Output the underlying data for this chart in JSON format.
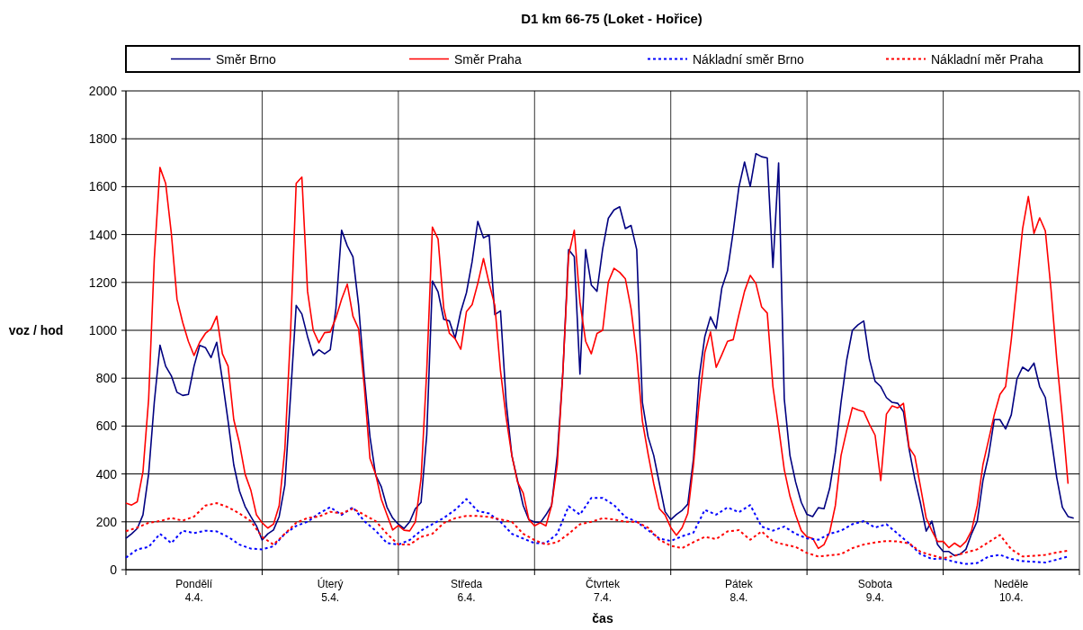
{
  "chart_data": {
    "type": "line",
    "title": "D1 km 66-75 (Loket - Hořice)",
    "xlabel": "čas",
    "ylabel": "voz / hod",
    "categories": [
      null,
      null,
      null,
      null,
      null,
      null,
      null,
      null,
      null,
      null,
      null,
      null,
      "Pondělí\n4.4.",
      null,
      null,
      null,
      null,
      null,
      null,
      null,
      null,
      null,
      null,
      null,
      null,
      null,
      null,
      null,
      null,
      null,
      null,
      null,
      null,
      null,
      null,
      null,
      "Úterý\n5.4.",
      null,
      null,
      null,
      null,
      null,
      null,
      null,
      null,
      null,
      null,
      null,
      null,
      null,
      null,
      null,
      null,
      null,
      null,
      null,
      null,
      null,
      null,
      null,
      "Středa\n6.4.",
      null,
      null,
      null,
      null,
      null,
      null,
      null,
      null,
      null,
      null,
      null,
      null,
      null,
      null,
      null,
      null,
      null,
      null,
      null,
      null,
      null,
      null,
      null,
      "Čtvrtek\n7.4.",
      null,
      null,
      null,
      null,
      null,
      null,
      null,
      null,
      null,
      null,
      null,
      null,
      null,
      null,
      null,
      null,
      null,
      null,
      null,
      null,
      null,
      null,
      null,
      "Pátek\n8.4.",
      null,
      null,
      null,
      null,
      null,
      null,
      null,
      null,
      null,
      null,
      null,
      null,
      null,
      null,
      null,
      null,
      null,
      null,
      null,
      null,
      null,
      null,
      null,
      "Sobota\n9.4.",
      null,
      null,
      null,
      null,
      null,
      null,
      null,
      null,
      null,
      null,
      null,
      null,
      null,
      null,
      null,
      null,
      null,
      null,
      null,
      null,
      null,
      null,
      null,
      "Neděle\n10.4.",
      null,
      null,
      null,
      null,
      null,
      null,
      null,
      null,
      null,
      null,
      null
    ],
    "ylim": [
      0,
      2000
    ],
    "yticks": [
      0,
      200,
      400,
      600,
      800,
      1000,
      1200,
      1400,
      1600,
      1800,
      2000
    ],
    "grid": true,
    "legend": "top",
    "series": [
      {
        "name": "Směr Brno",
        "color": "#000080",
        "line_style": "solid",
        "values": [
          131,
          150,
          172,
          229,
          400,
          700,
          938,
          850,
          810,
          741,
          728,
          732,
          850,
          937,
          928,
          886,
          950,
          791,
          621,
          438,
          329,
          264,
          222,
          183,
          124,
          150,
          166,
          222,
          353,
          725,
          1104,
          1068,
          974,
          895,
          919,
          902,
          919,
          1091,
          1418,
          1353,
          1307,
          1104,
          804,
          555,
          395,
          346,
          261,
          216,
          190,
          172,
          200,
          255,
          281,
          562,
          1206,
          1160,
          1046,
          1039,
          967,
          1078,
          1157,
          1287,
          1455,
          1386,
          1398,
          1065,
          1081,
          699,
          477,
          372,
          268,
          209,
          199,
          196,
          229,
          268,
          477,
          830,
          1337,
          1307,
          817,
          1337,
          1189,
          1163,
          1340,
          1468,
          1503,
          1516,
          1425,
          1438,
          1337,
          699,
          555,
          477,
          359,
          242,
          209,
          231,
          248,
          274,
          464,
          804,
          974,
          1056,
          1007,
          1177,
          1249,
          1412,
          1597,
          1703,
          1601,
          1738,
          1725,
          1720,
          1262,
          1699,
          713,
          477,
          366,
          281,
          231,
          222,
          259,
          255,
          340,
          490,
          699,
          876,
          1000,
          1023,
          1039,
          880,
          787,
          765,
          719,
          699,
          695,
          660,
          503,
          379,
          278,
          161,
          203,
          105,
          76,
          76,
          59,
          65,
          85,
          150,
          203,
          372,
          477,
          627,
          627,
          588,
          647,
          797,
          846,
          830,
          863,
          765,
          719,
          555,
          386,
          261,
          222,
          215
        ]
      },
      {
        "name": "Směr Praha",
        "color": "#ff0000",
        "line_style": "solid",
        "values": [
          278,
          270,
          284,
          409,
          712,
          1300,
          1680,
          1614,
          1405,
          1130,
          1033,
          954,
          895,
          950,
          987,
          1006,
          1059,
          902,
          850,
          627,
          529,
          399,
          333,
          229,
          196,
          174,
          190,
          268,
          503,
          987,
          1614,
          1640,
          1163,
          1000,
          948,
          990,
          993,
          1052,
          1130,
          1193,
          1059,
          1006,
          765,
          464,
          399,
          294,
          229,
          166,
          185,
          165,
          162,
          200,
          380,
          830,
          1431,
          1381,
          1091,
          987,
          965,
          921,
          1078,
          1107,
          1196,
          1300,
          1196,
          1104,
          830,
          634,
          477,
          366,
          320,
          209,
          183,
          196,
          183,
          268,
          438,
          830,
          1313,
          1418,
          1117,
          954,
          902,
          987,
          1000,
          1202,
          1259,
          1242,
          1215,
          1091,
          895,
          621,
          484,
          359,
          255,
          229,
          176,
          144,
          176,
          235,
          438,
          699,
          908,
          993,
          845,
          898,
          954,
          961,
          1065,
          1163,
          1229,
          1196,
          1098,
          1072,
          765,
          595,
          418,
          307,
          229,
          163,
          137,
          131,
          89,
          105,
          157,
          268,
          477,
          582,
          677,
          667,
          660,
          608,
          562,
          372,
          650,
          684,
          676,
          695,
          510,
          474,
          346,
          216,
          163,
          118,
          118,
          92,
          111,
          95,
          118,
          163,
          268,
          438,
          542,
          647,
          732,
          765,
          961,
          1196,
          1425,
          1559,
          1405,
          1470,
          1415,
          1170,
          882,
          634,
          359,
          null
        ]
      },
      {
        "name": "Nákladní směr Brno",
        "color": "#0000ff",
        "line_style": "dotted",
        "values": [
          50,
          null,
          85,
          null,
          95,
          null,
          150,
          null,
          111,
          null,
          163,
          null,
          153,
          null,
          163,
          null,
          160,
          null,
          137,
          null,
          105,
          null,
          88,
          null,
          85,
          null,
          98,
          null,
          150,
          null,
          183,
          null,
          200,
          null,
          235,
          null,
          261,
          null,
          229,
          null,
          261,
          null,
          203,
          null,
          163,
          null,
          111,
          null,
          105,
          null,
          124,
          null,
          163,
          null,
          190,
          null,
          216,
          null,
          250,
          null,
          295,
          null,
          245,
          null,
          235,
          null,
          200,
          null,
          150,
          null,
          130,
          null,
          111,
          null,
          111,
          null,
          150,
          null,
          265,
          null,
          230,
          null,
          300,
          null,
          300,
          null,
          270,
          null,
          220,
          null,
          200,
          null,
          165,
          null,
          130,
          null,
          120,
          null,
          140,
          null,
          155,
          null,
          250,
          null,
          230,
          null,
          260,
          null,
          240,
          null,
          270,
          null,
          180,
          null,
          163,
          null,
          180,
          null,
          150,
          null,
          131,
          null,
          125,
          null,
          150,
          null,
          163,
          null,
          190,
          null,
          203,
          null,
          176,
          null,
          190,
          null,
          150,
          null,
          110,
          null,
          65,
          null,
          45,
          null,
          46,
          null,
          33,
          null,
          24,
          null,
          28,
          null,
          55,
          null,
          62,
          null,
          45,
          null,
          36,
          null,
          33,
          null,
          30,
          null,
          42,
          null,
          55,
          null
        ]
      },
      {
        "name": "Nákladní měr Praha",
        "color": "#ff0000",
        "line_style": "dotted",
        "values": [
          161,
          null,
          176,
          null,
          196,
          null,
          203,
          null,
          216,
          null,
          205,
          null,
          222,
          null,
          268,
          null,
          278,
          null,
          261,
          null,
          235,
          null,
          203,
          null,
          137,
          null,
          105,
          null,
          150,
          null,
          196,
          null,
          216,
          null,
          222,
          null,
          242,
          null,
          235,
          null,
          255,
          null,
          229,
          null,
          203,
          null,
          150,
          null,
          105,
          null,
          105,
          null,
          137,
          null,
          150,
          null,
          195,
          null,
          215,
          null,
          225,
          null,
          225,
          null,
          220,
          null,
          210,
          null,
          200,
          null,
          150,
          null,
          124,
          null,
          105,
          null,
          115,
          null,
          150,
          null,
          190,
          null,
          200,
          null,
          215,
          null,
          210,
          null,
          200,
          null,
          200,
          null,
          175,
          null,
          125,
          null,
          100,
          null,
          90,
          null,
          115,
          null,
          137,
          null,
          128,
          null,
          160,
          null,
          165,
          null,
          125,
          null,
          160,
          null,
          118,
          null,
          105,
          null,
          95,
          null,
          70,
          null,
          55,
          null,
          60,
          null,
          65,
          null,
          90,
          null,
          105,
          null,
          114,
          null,
          120,
          null,
          118,
          null,
          110,
          null,
          75,
          null,
          60,
          null,
          48,
          null,
          58,
          null,
          72,
          null,
          85,
          null,
          115,
          null,
          145,
          null,
          85,
          null,
          55,
          null,
          58,
          null,
          62,
          null,
          72,
          null,
          80,
          null
        ]
      }
    ]
  }
}
